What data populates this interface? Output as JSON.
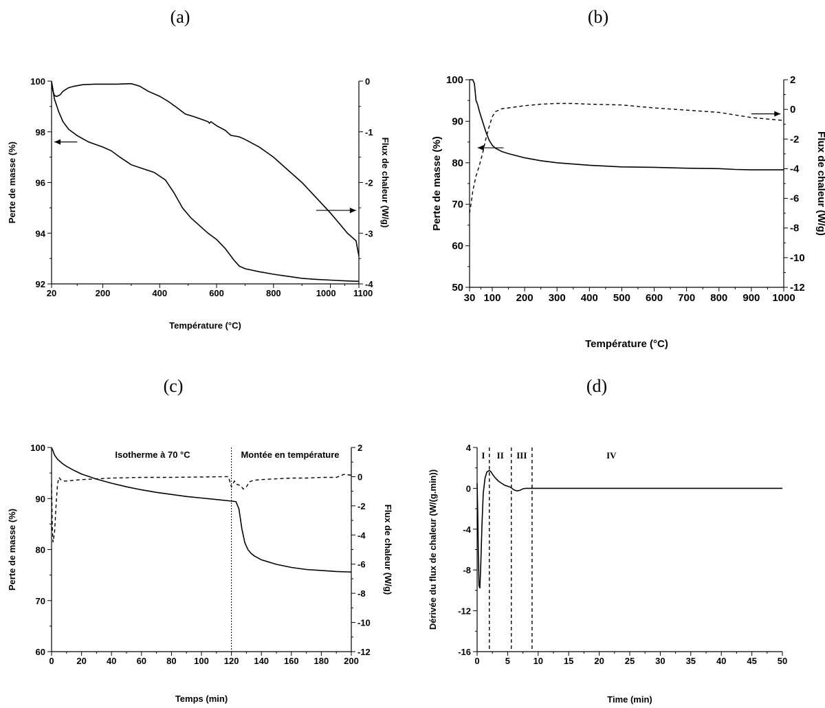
{
  "panels": [
    {
      "id": "a",
      "letter": "(a)"
    },
    {
      "id": "b",
      "letter": "(b)"
    },
    {
      "id": "c",
      "letter": "(c)"
    },
    {
      "id": "d",
      "letter": "(d)"
    }
  ],
  "chart_data": [
    {
      "panel": "(a)",
      "type": "line",
      "xlabel": "Température (°C)",
      "ylabel": "Perte de masse (%)",
      "ylabel_right": "Flux de chaleur (W/g)",
      "xlim": [
        20,
        1100
      ],
      "ylim": [
        92,
        100
      ],
      "ylim_right": [
        -4,
        0
      ],
      "xticks": [
        20,
        200,
        400,
        600,
        800,
        1000,
        1100
      ],
      "xtick_labels": [
        "20",
        "200",
        "400",
        "600",
        "800",
        "1000",
        "1100"
      ],
      "yticks": [
        92,
        94,
        96,
        98,
        100
      ],
      "yticks_right": [
        -4,
        -3,
        -2,
        -1,
        0
      ],
      "series": [
        {
          "axis": "left",
          "style": "solid",
          "x": [
            20,
            30,
            45,
            60,
            80,
            110,
            150,
            200,
            230,
            260,
            300,
            340,
            380,
            420,
            450,
            480,
            510,
            540,
            570,
            600,
            630,
            660,
            680,
            700,
            750,
            800,
            850,
            900,
            950,
            1000,
            1050,
            1100
          ],
          "y": [
            100,
            99.3,
            98.8,
            98.4,
            98.1,
            97.85,
            97.6,
            97.4,
            97.25,
            97.0,
            96.7,
            96.55,
            96.4,
            96.1,
            95.6,
            95.0,
            94.6,
            94.3,
            94.0,
            93.75,
            93.4,
            92.95,
            92.7,
            92.6,
            92.48,
            92.38,
            92.3,
            92.22,
            92.18,
            92.15,
            92.12,
            92.1
          ]
        },
        {
          "axis": "right",
          "style": "solid",
          "x": [
            20,
            25,
            30,
            35,
            40,
            50,
            60,
            80,
            100,
            130,
            170,
            200,
            250,
            300,
            330,
            360,
            400,
            430,
            460,
            490,
            520,
            550,
            570,
            575,
            580,
            600,
            630,
            650,
            680,
            700,
            750,
            800,
            850,
            900,
            950,
            1000,
            1030,
            1060,
            1080,
            1090,
            1095,
            1100
          ],
          "y": [
            -0.05,
            -0.2,
            -0.28,
            -0.3,
            -0.3,
            -0.27,
            -0.2,
            -0.13,
            -0.1,
            -0.07,
            -0.06,
            -0.06,
            -0.06,
            -0.05,
            -0.1,
            -0.2,
            -0.3,
            -0.4,
            -0.52,
            -0.65,
            -0.7,
            -0.76,
            -0.8,
            -0.83,
            -0.8,
            -0.88,
            -0.97,
            -1.07,
            -1.1,
            -1.15,
            -1.3,
            -1.5,
            -1.75,
            -2.0,
            -2.3,
            -2.6,
            -2.8,
            -3.0,
            -3.1,
            -3.15,
            -3.3,
            -3.45
          ]
        }
      ],
      "annotations": [
        {
          "type": "arrow",
          "points_to": "left axis",
          "x": [
            110,
            30
          ],
          "y": 97.6
        },
        {
          "type": "arrow",
          "points_to": "right axis",
          "x": [
            950,
            1090
          ],
          "y_right": -2.55
        }
      ]
    },
    {
      "panel": "(b)",
      "type": "line",
      "xlabel": "Température (°C)",
      "ylabel": "Perte de masse (%)",
      "ylabel_right": "Flux de chaleur (W/g)",
      "xlim": [
        30,
        1000
      ],
      "ylim": [
        50,
        100
      ],
      "ylim_right": [
        -12,
        2
      ],
      "xticks": [
        30,
        100,
        200,
        300,
        400,
        500,
        600,
        700,
        800,
        900,
        1000
      ],
      "xtick_labels": [
        "30",
        "100",
        "200",
        "300",
        "400",
        "500",
        "600",
        "700",
        "800",
        "900",
        "1000"
      ],
      "yticks": [
        50,
        60,
        70,
        80,
        90,
        100
      ],
      "yticks_right": [
        -12,
        -10,
        -8,
        -6,
        -4,
        -2,
        0,
        2
      ],
      "series": [
        {
          "axis": "left",
          "style": "solid",
          "x": [
            30,
            40,
            45,
            50,
            55,
            60,
            70,
            80,
            90,
            100,
            110,
            130,
            150,
            200,
            250,
            300,
            400,
            500,
            600,
            700,
            800,
            850,
            900,
            950,
            1000
          ],
          "y": [
            100,
            100,
            99,
            95,
            94,
            92.5,
            90,
            87.5,
            85.5,
            84.2,
            83.5,
            82.7,
            82.2,
            81.2,
            80.5,
            80.0,
            79.4,
            79.0,
            78.9,
            78.7,
            78.6,
            78.4,
            78.3,
            78.3,
            78.3
          ]
        },
        {
          "axis": "right",
          "style": "dashed",
          "x": [
            30,
            35,
            40,
            50,
            60,
            70,
            80,
            90,
            100,
            110,
            130,
            150,
            200,
            250,
            300,
            350,
            400,
            500,
            600,
            700,
            800,
            900,
            1000
          ],
          "y": [
            -7.0,
            -6.3,
            -5.5,
            -4.5,
            -3.8,
            -3.0,
            -2.0,
            -1.2,
            -0.5,
            -0.15,
            0.05,
            0.1,
            0.25,
            0.35,
            0.4,
            0.4,
            0.35,
            0.3,
            0.1,
            -0.05,
            -0.2,
            -0.55,
            -0.75
          ]
        }
      ],
      "annotations": [
        {
          "type": "arrow",
          "points_to": "left axis",
          "x": [
            135,
            55
          ],
          "y": 83.6
        },
        {
          "type": "arrow",
          "points_to": "right axis",
          "x": [
            900,
            990
          ],
          "y_right": -0.3
        }
      ]
    },
    {
      "panel": "(c)",
      "type": "line",
      "xlabel": "Temps (min)",
      "ylabel": "Perte de masse (%)",
      "ylabel_right": "Flux de chaleur (W/g)",
      "xlim": [
        0,
        200
      ],
      "ylim": [
        60,
        100
      ],
      "ylim_right": [
        -12,
        2
      ],
      "xticks": [
        0,
        20,
        40,
        60,
        80,
        100,
        120,
        140,
        160,
        180,
        200
      ],
      "yticks": [
        60,
        70,
        80,
        90,
        100
      ],
      "yticks_right": [
        -12,
        -10,
        -8,
        -6,
        -4,
        -2,
        0,
        2
      ],
      "series": [
        {
          "axis": "left",
          "style": "solid",
          "x": [
            0,
            1,
            2,
            4,
            7,
            10,
            15,
            20,
            30,
            40,
            50,
            60,
            70,
            80,
            90,
            100,
            110,
            120,
            123,
            125,
            127,
            129,
            131,
            133,
            135,
            140,
            150,
            160,
            170,
            180,
            190,
            200
          ],
          "y": [
            100,
            99.3,
            98.5,
            97.7,
            96.9,
            96.3,
            95.5,
            94.8,
            93.8,
            93.0,
            92.3,
            91.7,
            91.2,
            90.8,
            90.4,
            90.1,
            89.8,
            89.5,
            89.4,
            88.0,
            84.0,
            81.3,
            80.0,
            79.3,
            78.8,
            78.0,
            77.1,
            76.5,
            76.1,
            75.9,
            75.7,
            75.6
          ]
        },
        {
          "axis": "right",
          "style": "dashed",
          "x": [
            0,
            0.5,
            1,
            2,
            3,
            4,
            5,
            6,
            8,
            10,
            20,
            40,
            60,
            80,
            100,
            118,
            120,
            122,
            124,
            126,
            128,
            130,
            132,
            135,
            140,
            150,
            160,
            170,
            180,
            190,
            195,
            200
          ],
          "y": [
            -0.5,
            -3.5,
            -4.5,
            -3.8,
            -2.0,
            -0.5,
            -0.05,
            -0.2,
            -0.3,
            -0.3,
            -0.2,
            -0.1,
            -0.05,
            -0.05,
            -0.02,
            0.0,
            -0.7,
            -0.3,
            -0.55,
            -0.6,
            -0.85,
            -0.7,
            -0.35,
            -0.25,
            -0.2,
            -0.15,
            -0.1,
            -0.1,
            -0.05,
            -0.05,
            0.15,
            0.1
          ]
        }
      ],
      "vertical_lines": [
        120
      ],
      "annotations": [
        {
          "text": "Isotherme à 70 °C"
        },
        {
          "text": "Montée en température"
        }
      ]
    },
    {
      "panel": "(d)",
      "type": "line",
      "xlabel": "Time (min)",
      "ylabel": "Dérivée du flux de chaleur (W/(g.min))",
      "xlim": [
        0,
        50
      ],
      "ylim": [
        -16,
        4
      ],
      "xticks": [
        0,
        5,
        10,
        15,
        20,
        25,
        30,
        35,
        40,
        45,
        50
      ],
      "yticks": [
        -16,
        -12,
        -8,
        -4,
        0,
        4
      ],
      "series": [
        {
          "axis": "left",
          "style": "solid",
          "x": [
            0,
            0.1,
            0.2,
            0.3,
            0.45,
            0.6,
            0.8,
            1.0,
            1.3,
            1.6,
            2.0,
            2.3,
            2.6,
            3.0,
            3.5,
            4.0,
            4.5,
            5.0,
            5.5,
            6.0,
            6.5,
            7.0,
            7.5,
            8.0,
            8.5,
            9.0,
            10,
            20,
            30,
            40,
            50
          ],
          "y": [
            0.5,
            -2.5,
            -6.5,
            -9.5,
            -9.8,
            -7.5,
            -3.5,
            -0.5,
            1.0,
            1.6,
            1.75,
            1.6,
            1.3,
            1.0,
            0.7,
            0.5,
            0.3,
            0.2,
            0.1,
            -0.15,
            -0.25,
            -0.2,
            -0.05,
            0.0,
            0.0,
            0.0,
            0.0,
            0.0,
            0.0,
            0.0,
            0.0
          ]
        }
      ],
      "vertical_lines": [
        2,
        5.6,
        9
      ],
      "annotations": [
        {
          "text": "I"
        },
        {
          "text": "II"
        },
        {
          "text": "III"
        },
        {
          "text": "IV"
        }
      ]
    }
  ]
}
